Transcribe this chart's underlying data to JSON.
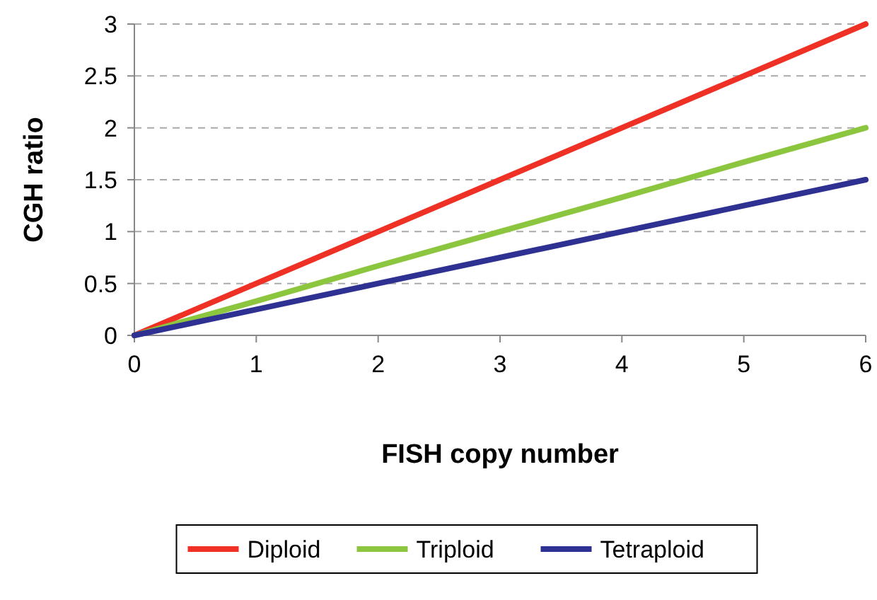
{
  "chart_data": {
    "type": "line",
    "xlabel": "FISH copy number",
    "ylabel": "CGH ratio",
    "x": [
      0,
      1,
      2,
      3,
      4,
      5,
      6
    ],
    "series": [
      {
        "name": "Diploid",
        "color": "#ee3124",
        "values": [
          0,
          0.5,
          1,
          1.5,
          2,
          2.5,
          3
        ]
      },
      {
        "name": "Triploid",
        "color": "#8cc63f",
        "values": [
          0,
          0.33,
          0.67,
          1,
          1.33,
          1.67,
          2
        ]
      },
      {
        "name": "Tetraploid",
        "color": "#2e3192",
        "values": [
          0,
          0.25,
          0.5,
          0.75,
          1,
          1.25,
          1.5
        ]
      }
    ],
    "xlim": [
      0,
      6
    ],
    "xticks": [
      0,
      1,
      2,
      3,
      4,
      5,
      6
    ],
    "ylim": [
      0,
      3
    ],
    "yticks": [
      0,
      0.5,
      1,
      1.5,
      2,
      2.5,
      3
    ],
    "grid": "y",
    "legend": "bottom"
  }
}
